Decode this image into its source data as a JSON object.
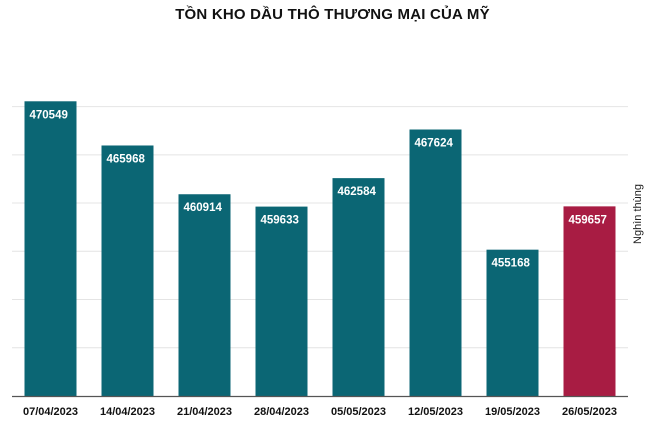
{
  "chart_data": {
    "type": "bar",
    "title": "TỒN KHO DẦU THÔ THƯƠNG MẠI CỦA MỸ",
    "ylabel": "Nghìn thùng",
    "xlabel": "",
    "categories": [
      "07/04/2023",
      "14/04/2023",
      "21/04/2023",
      "28/04/2023",
      "05/05/2023",
      "12/05/2023",
      "19/05/2023",
      "26/05/2023"
    ],
    "values": [
      470549,
      465968,
      460914,
      459633,
      462584,
      467624,
      455168,
      459657
    ],
    "data_labels": [
      "470549",
      "465968",
      "460914",
      "459633",
      "462584",
      "467624",
      "455168",
      "459657"
    ],
    "ylim": [
      440000,
      474000
    ],
    "grid": true,
    "colors": {
      "default": "#0b6674",
      "highlight": "#a81c43",
      "grid": "#e4e4e4",
      "axis": "#555555"
    },
    "highlight_index": 7
  }
}
